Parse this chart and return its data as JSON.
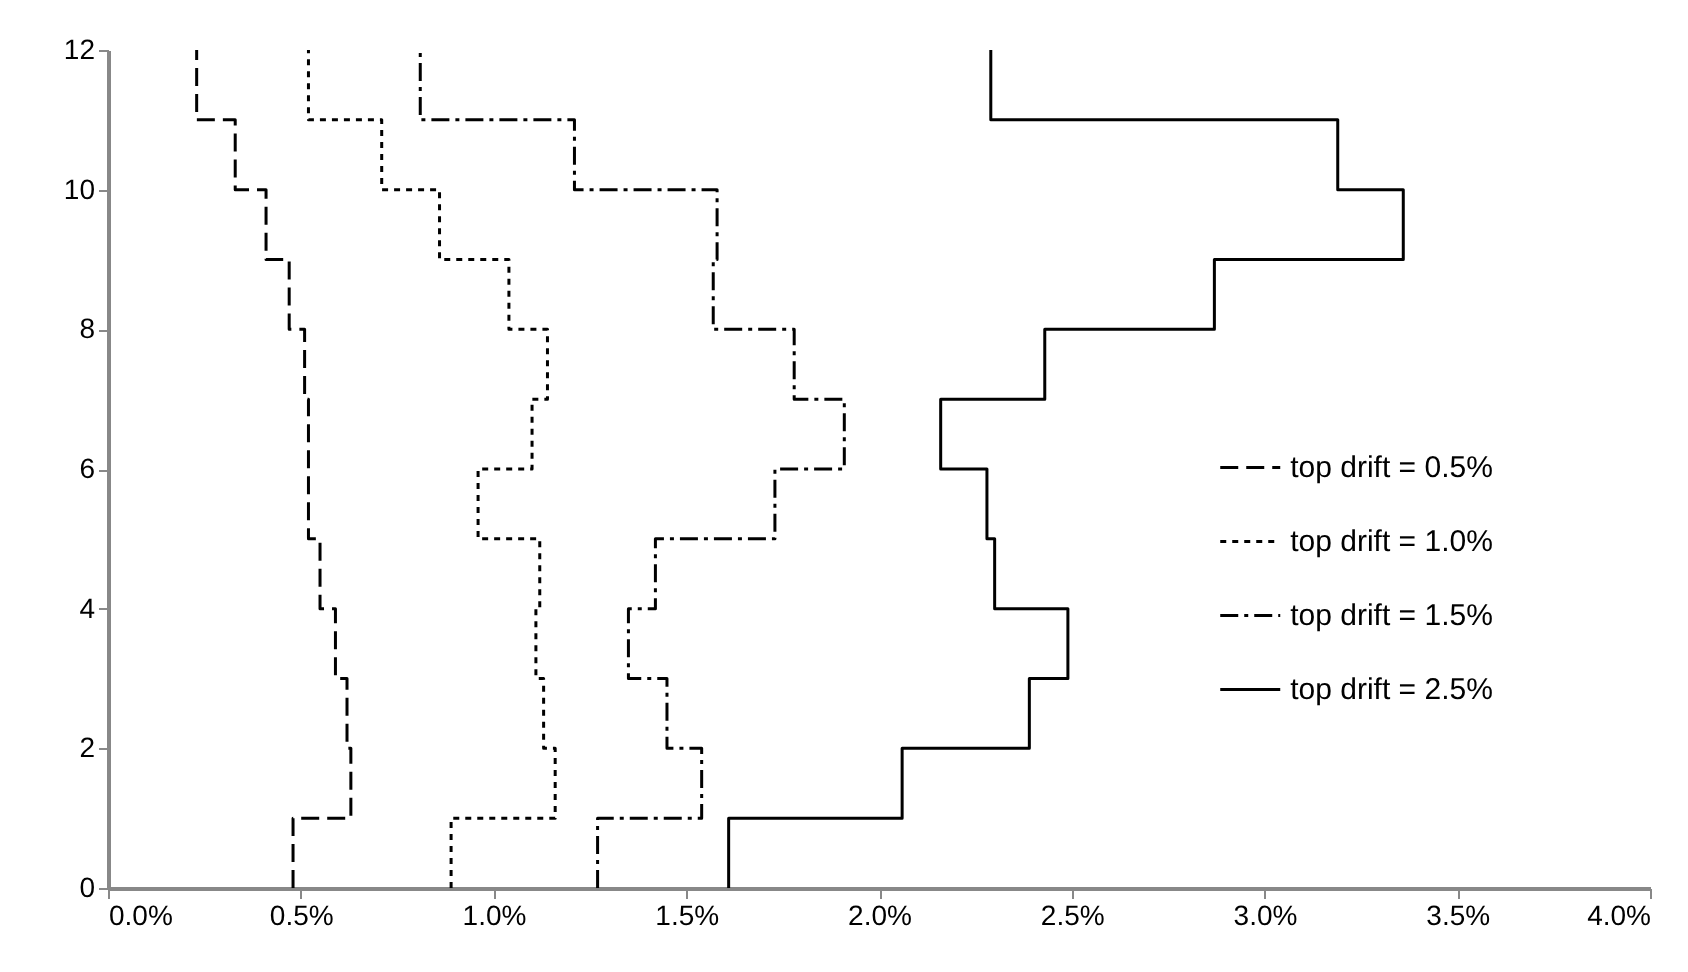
{
  "chart_data": {
    "type": "step",
    "orientation": "horizontal",
    "x": [
      0,
      1,
      2,
      3,
      4,
      5,
      6,
      7,
      8,
      9,
      10,
      11,
      12
    ],
    "xlim": [
      0,
      4
    ],
    "xticks": [
      {
        "value": 0,
        "label": "0.0%"
      },
      {
        "value": 0.5,
        "label": "0.5%"
      },
      {
        "value": 1,
        "label": "1.0%"
      },
      {
        "value": 1.5,
        "label": "1.5%"
      },
      {
        "value": 2,
        "label": "2.0%"
      },
      {
        "value": 2.5,
        "label": "2.5%"
      },
      {
        "value": 3,
        "label": "3.0%"
      },
      {
        "value": 3.5,
        "label": "3.5%"
      },
      {
        "value": 4,
        "label": "4.0%"
      }
    ],
    "ylim": [
      0,
      12
    ],
    "yticks": [
      0,
      2,
      4,
      6,
      8,
      10,
      12
    ],
    "grid": false,
    "legend": "right",
    "series": [
      {
        "name": "top drift = 0.5%",
        "color": "#000000",
        "line_style": "dashed",
        "values": [
          0.48,
          0.63,
          0.62,
          0.59,
          0.55,
          0.52,
          0.52,
          0.51,
          0.47,
          0.41,
          0.33,
          0.23,
          0.23
        ]
      },
      {
        "name": "top drift = 1.0%",
        "color": "#000000",
        "line_style": "dotted",
        "values": [
          0.89,
          1.16,
          1.13,
          1.11,
          1.12,
          0.96,
          1.1,
          1.14,
          1.04,
          0.86,
          0.71,
          0.52,
          0.52
        ]
      },
      {
        "name": "top drift = 1.5%",
        "color": "#000000",
        "line_style": "dashdot",
        "values": [
          1.27,
          1.54,
          1.45,
          1.35,
          1.42,
          1.73,
          1.91,
          1.78,
          1.57,
          1.58,
          1.21,
          0.81,
          0.81
        ]
      },
      {
        "name": "top drift = 2.5%",
        "color": "#000000",
        "line_style": "solid",
        "values": [
          1.61,
          2.06,
          2.39,
          2.49,
          2.3,
          2.28,
          2.16,
          2.43,
          2.87,
          3.36,
          3.19,
          2.29,
          2.29
        ]
      }
    ]
  }
}
